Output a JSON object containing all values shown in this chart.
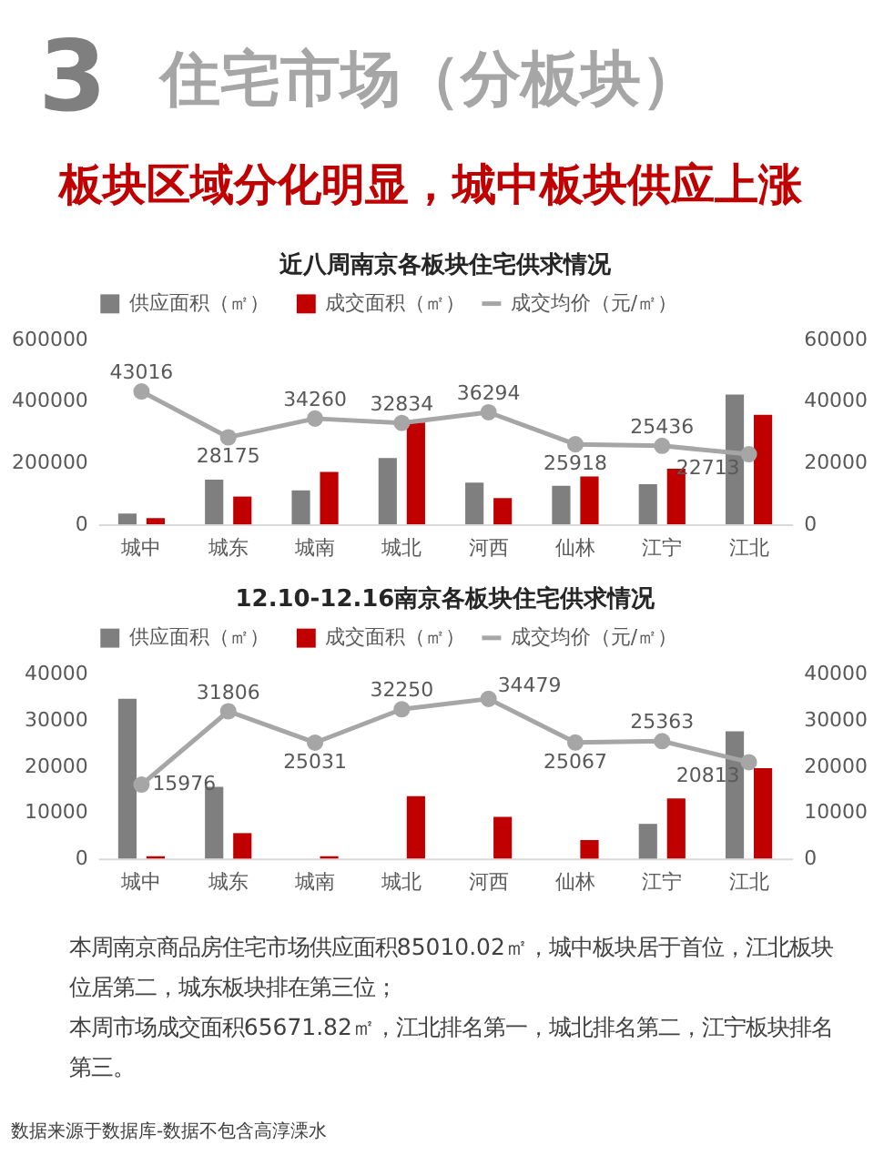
{
  "chart_data": [
    {
      "type": "other",
      "annotations": [
        "3"
      ],
      "title": "住宅市场（分板块）",
      "subtitle": "板块区域分化明显，城中板块供应上涨"
    },
    {
      "type": "bar",
      "title": "近八周南京各板块住宅供求情况",
      "categories": [
        "城中",
        "城东",
        "城南",
        "城北",
        "河西",
        "仙林",
        "江宁",
        "江北"
      ],
      "series": [
        {
          "name": "供应面积（㎡）",
          "type": "bar",
          "color": "#7f7f7f",
          "values": [
            35000,
            145000,
            110000,
            215000,
            135000,
            125000,
            130000,
            420000
          ]
        },
        {
          "name": "成交面积（㎡）",
          "type": "bar",
          "color": "#c00000",
          "values": [
            20000,
            90000,
            170000,
            330000,
            85000,
            155000,
            180000,
            355000
          ]
        },
        {
          "name": "成交均价（元/㎡）",
          "type": "line",
          "axis": "y2",
          "color": "#a6a6a6",
          "marker": "circle",
          "values": [
            43016,
            28175,
            34260,
            32834,
            36294,
            25918,
            25436,
            22713
          ],
          "value_labels": [
            "43016",
            "28175",
            "34260",
            "32834",
            "36294",
            "25918",
            "25436",
            "22713"
          ]
        }
      ],
      "ylim": [
        0,
        600000
      ],
      "yticks": [
        0,
        200000,
        400000,
        600000
      ],
      "y2lim": [
        0,
        60000
      ],
      "y2ticks": [
        0,
        20000,
        40000,
        60000
      ],
      "legend": "top"
    },
    {
      "type": "bar",
      "title": "12.10-12.16南京各板块住宅供求情况",
      "categories": [
        "城中",
        "城东",
        "城南",
        "城北",
        "河西",
        "仙林",
        "江宁",
        "江北"
      ],
      "series": [
        {
          "name": "供应面积（㎡）",
          "type": "bar",
          "color": "#7f7f7f",
          "values": [
            34500,
            15500,
            null,
            null,
            null,
            null,
            7500,
            27500
          ]
        },
        {
          "name": "成交面积（㎡）",
          "type": "bar",
          "color": "#c00000",
          "values": [
            500,
            5500,
            500,
            13500,
            9000,
            4000,
            13000,
            19500
          ]
        },
        {
          "name": "成交均价（元/㎡）",
          "type": "line",
          "axis": "y2",
          "color": "#a6a6a6",
          "marker": "circle",
          "values": [
            15976,
            31806,
            25031,
            32250,
            34479,
            25067,
            25363,
            20813
          ],
          "value_labels": [
            "15976",
            "31806",
            "25031",
            "32250",
            "34479",
            "25067",
            "25363",
            "20813"
          ]
        }
      ],
      "ylim": [
        0,
        40000
      ],
      "yticks": [
        0,
        10000,
        20000,
        30000,
        40000
      ],
      "y2lim": [
        0,
        40000
      ],
      "y2ticks": [
        0,
        10000,
        20000,
        30000,
        40000
      ],
      "legend": "top"
    },
    {
      "type": "other",
      "annotations": [
        "本周南京商品房住宅市场供应面积85010.02㎡，城中板块居于首位，江北板块位居第二，城东板块排在第三位；",
        "本周市场成交面积65671.82㎡，江北排名第一，城北排名第二，江宁板块排名第三。",
        "数据来源于数据库-数据不包含高淳溧水"
      ]
    }
  ]
}
